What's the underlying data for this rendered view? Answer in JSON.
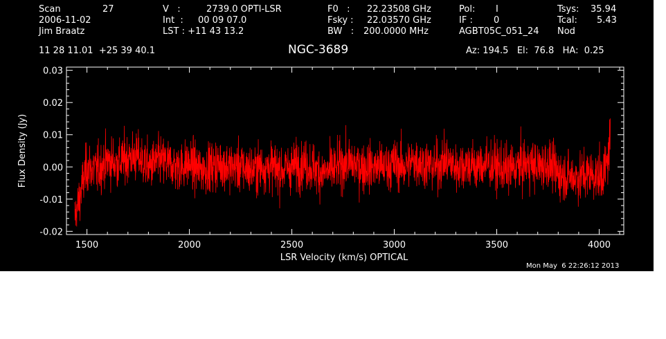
{
  "header": {
    "scan_label": "Scan",
    "scan_value": "27",
    "date": "2006-11-02",
    "observer": "Jim Braatz",
    "v_label": "V   :",
    "v_value": "2739.0 OPTI-LSR",
    "int_label": "Int  :",
    "int_value": "00 09 07.0",
    "lst_label": "LST : +11 43 13.2",
    "f0_label": "F0   :",
    "f0_value": "22.23508 GHz",
    "fsky_label": "Fsky :",
    "fsky_value": "22.03570 GHz",
    "bw_label": "BW   :",
    "bw_value": "200.0000 MHz",
    "pol_label": "Pol:",
    "pol_value": "I",
    "if_label": "IF :",
    "if_value": "0",
    "project": "AGBT05C_051_24",
    "tsys_label": "Tsys:",
    "tsys_value": "35.94",
    "tcal_label": "Tcal:",
    "tcal_value": "5.43",
    "mode": "Nod",
    "coords": "11 28 11.01  +25 39 40.1",
    "az_el_ha": "Az: 194.5   El:  76.8   HA:  0.25",
    "timestamp": "Mon May  6 22:26:12 2013"
  },
  "colors": {
    "background": "#000000",
    "axes": "#ffffff",
    "trace": "#ff0000"
  },
  "chart_data": {
    "type": "line",
    "title": "NGC-3689",
    "xlabel": "LSR Velocity (km/s) OPTICAL",
    "ylabel": "Flux Density (Jy)",
    "xlim": [
      1400,
      4120
    ],
    "ylim": [
      -0.021,
      0.031
    ],
    "xticks": [
      1500,
      2000,
      2500,
      3000,
      3500,
      4000
    ],
    "xtick_labels": [
      "1500",
      "2000",
      "2500",
      "3000",
      "3500",
      "4000"
    ],
    "yticks": [
      -0.02,
      -0.01,
      0.0,
      0.01,
      0.02,
      0.03
    ],
    "ytick_labels": [
      "-0.02",
      "-0.01",
      "0.00",
      "0.01",
      "0.02",
      "0.03"
    ],
    "series": [
      {
        "x": [
          1440,
          1460,
          1480,
          1500,
          1550,
          1600,
          1650,
          1700,
          1750,
          1800,
          1850,
          1900,
          1950,
          2000,
          2050,
          2100,
          2150,
          2200,
          2250,
          2300,
          2350,
          2400,
          2450,
          2500,
          2550,
          2600,
          2650,
          2700,
          2750,
          2800,
          2850,
          2900,
          2950,
          3000,
          3050,
          3100,
          3150,
          3200,
          3250,
          3300,
          3350,
          3400,
          3450,
          3500,
          3550,
          3600,
          3650,
          3700,
          3750,
          3800,
          3850,
          3900,
          3950,
          4000,
          4020,
          4040,
          4055
        ],
        "y": [
          -0.016,
          -0.011,
          -0.005,
          0.0,
          -0.001,
          0.002,
          0.001,
          0.003,
          0.003,
          0.0,
          0.002,
          0.001,
          0.0,
          0.001,
          -0.001,
          0.0,
          0.001,
          0.0,
          0.0,
          -0.001,
          0.0,
          0.0,
          -0.001,
          0.0,
          0.001,
          0.0,
          -0.002,
          -0.001,
          0.001,
          0.001,
          0.0,
          0.0,
          0.0,
          0.001,
          0.0,
          0.002,
          0.001,
          0.0,
          0.002,
          0.0,
          0.001,
          0.0,
          0.001,
          0.0,
          -0.001,
          0.0,
          0.001,
          0.0,
          0.001,
          -0.002,
          -0.003,
          -0.003,
          -0.002,
          -0.003,
          -0.002,
          0.001,
          0.01
        ],
        "noise_rms_jy": 0.004
      }
    ]
  }
}
